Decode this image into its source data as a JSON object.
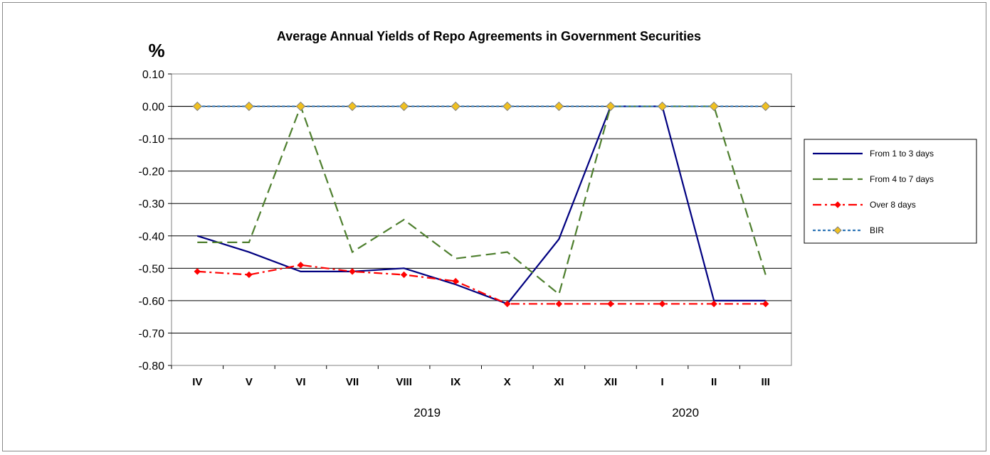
{
  "chart_data": {
    "type": "line",
    "title": "Average Annual Yields of Repo Agreements in Government Securities",
    "ylabel": "%",
    "xlabel": "",
    "ylim": [
      -0.8,
      0.1
    ],
    "yticks": [
      0.1,
      0.0,
      -0.1,
      -0.2,
      -0.3,
      -0.4,
      -0.5,
      -0.6,
      -0.7,
      -0.8
    ],
    "categories": [
      "IV",
      "V",
      "VI",
      "VII",
      "VIII",
      "IX",
      "X",
      "XI",
      "XII",
      "I",
      "II",
      "III"
    ],
    "year_labels": [
      {
        "label": "2019",
        "at_category": "IX"
      },
      {
        "label": "2020",
        "at_category": "II"
      }
    ],
    "grid": "horizontal",
    "legend": "right",
    "series": [
      {
        "name": "From 1 to 3 days",
        "color": "#000080",
        "style": "solid",
        "marker": "none",
        "values": [
          -0.4,
          -0.45,
          -0.51,
          -0.51,
          -0.5,
          -0.55,
          -0.61,
          -0.41,
          0.0,
          0.0,
          -0.6,
          -0.6
        ]
      },
      {
        "name": "From 4 to 7 days",
        "color": "#4e7f2e",
        "style": "dashed",
        "marker": "none",
        "values": [
          -0.42,
          -0.42,
          0.0,
          -0.45,
          -0.35,
          -0.47,
          -0.45,
          -0.58,
          0.0,
          0.0,
          0.0,
          -0.52
        ]
      },
      {
        "name": "Over 8 days",
        "color": "#ff0000",
        "style": "dashdot",
        "marker": "diamond",
        "values": [
          -0.51,
          -0.52,
          -0.49,
          -0.51,
          -0.52,
          -0.54,
          -0.61,
          -0.61,
          -0.61,
          -0.61,
          -0.61,
          -0.61
        ]
      },
      {
        "name": "BIR",
        "color": "#2e75b6",
        "style": "dotted",
        "marker": "diamond",
        "marker_fill": "#f0c020",
        "values": [
          0.0,
          0.0,
          0.0,
          0.0,
          0.0,
          0.0,
          0.0,
          0.0,
          0.0,
          0.0,
          0.0,
          0.0
        ]
      }
    ]
  }
}
